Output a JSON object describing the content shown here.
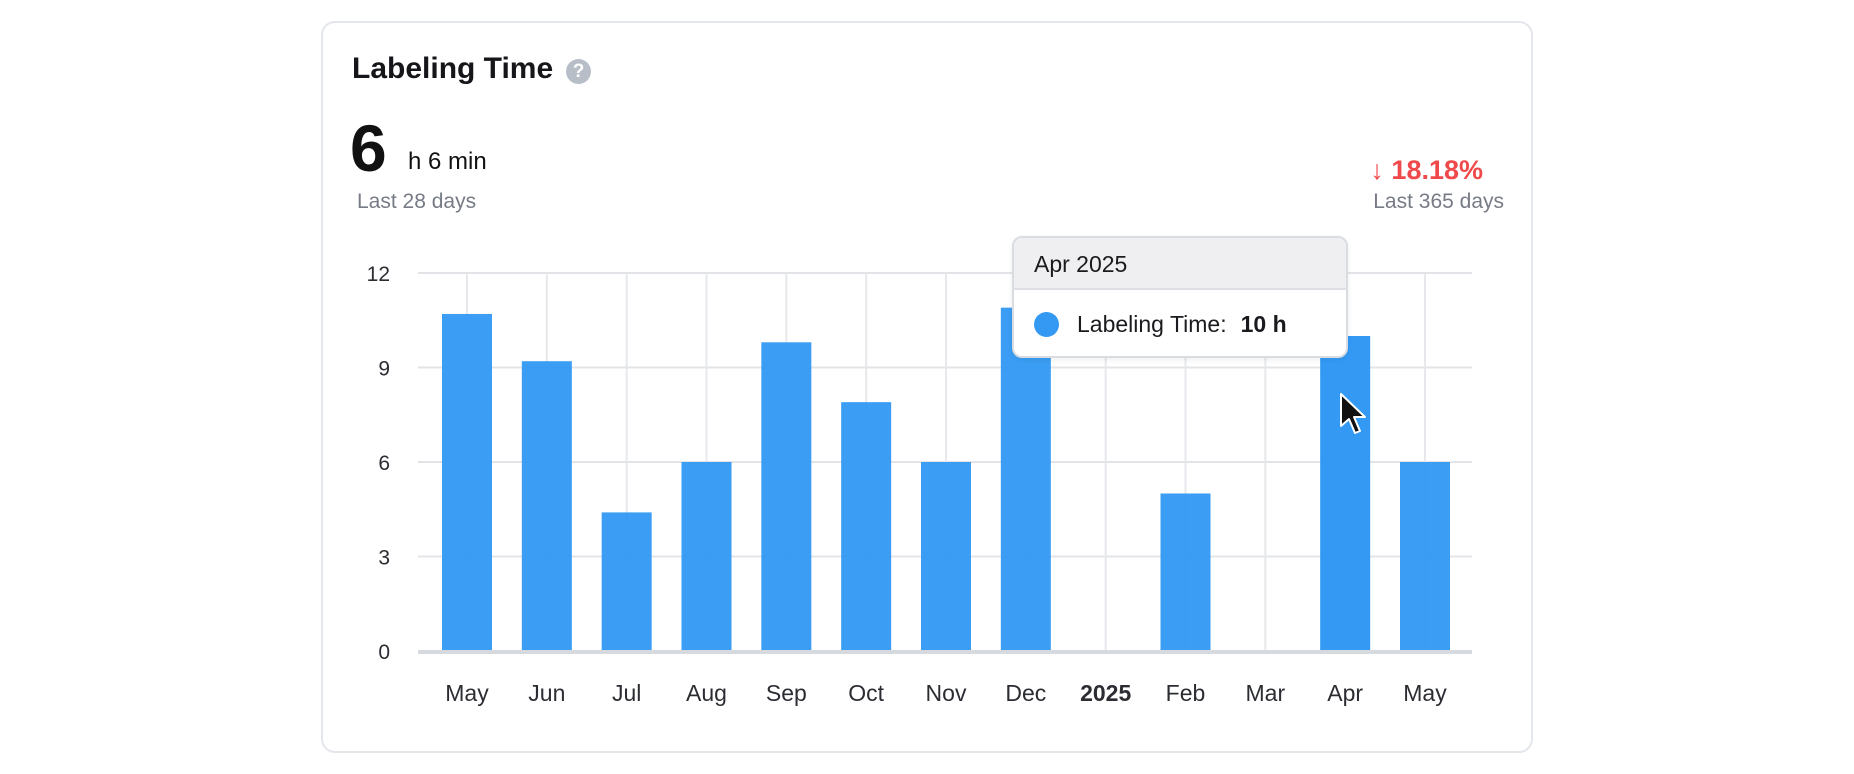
{
  "header": {
    "title": "Labeling Time",
    "help_icon": "question-circle-icon",
    "big_value": "6",
    "big_unit": "h 6 min",
    "period": "Last 28 days",
    "change": "↓ 18.18%",
    "change_period": "Last 365 days",
    "change_color": "#f0494b"
  },
  "tooltip": {
    "title": "Apr 2025",
    "series_label": "Labeling Time:",
    "value": "10 h"
  },
  "chart_data": {
    "type": "bar",
    "categories": [
      "May",
      "Jun",
      "Jul",
      "Aug",
      "Sep",
      "Oct",
      "Nov",
      "Dec",
      "2025",
      "Feb",
      "Mar",
      "Apr",
      "May"
    ],
    "bold_categories": [
      "2025"
    ],
    "series": [
      {
        "values": [
          10.7,
          9.2,
          4.4,
          6.0,
          9.8,
          7.9,
          6.0,
          10.9,
          0,
          5.0,
          0,
          10.0,
          6.0
        ]
      }
    ],
    "ylim": [
      0,
      12
    ],
    "yticks": [
      0,
      3,
      6,
      9,
      12
    ],
    "grid": true,
    "bar_color": "#3399f3",
    "highlighted_index": 11
  }
}
